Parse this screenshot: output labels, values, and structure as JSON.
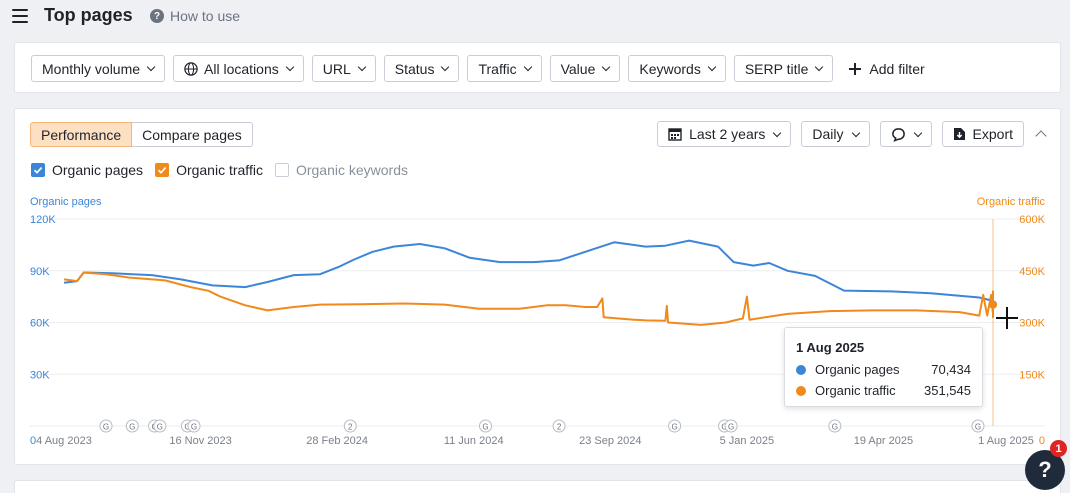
{
  "header": {
    "title": "Top pages",
    "how_to_use": "How to use"
  },
  "filters": {
    "items": [
      "Monthly volume",
      "All locations",
      "URL",
      "Status",
      "Traffic",
      "Value",
      "Keywords",
      "SERP title"
    ],
    "add_filter": "Add filter"
  },
  "chart_panel": {
    "tabs": [
      "Performance",
      "Compare pages"
    ],
    "active_tab": "Performance",
    "date_range": "Last 2 years",
    "granularity": "Daily",
    "export": "Export",
    "checks": [
      {
        "label": "Organic pages",
        "checked": true,
        "color": "#3b86d8"
      },
      {
        "label": "Organic traffic",
        "checked": true,
        "color": "#f08a1a"
      },
      {
        "label": "Organic keywords",
        "checked": false,
        "color": "#c9ced6"
      }
    ]
  },
  "tooltip": {
    "date": "1 Aug 2025",
    "rows": [
      {
        "label": "Organic pages",
        "value": "70,434",
        "color": "#3b86d8"
      },
      {
        "label": "Organic traffic",
        "value": "351,545",
        "color": "#f08a1a"
      }
    ]
  },
  "help_badge": "1",
  "chart_data": {
    "type": "line",
    "left_axis_title": "Organic pages",
    "right_axis_title": "Organic traffic",
    "left_ticks": [
      "0",
      "30K",
      "60K",
      "90K",
      "120K"
    ],
    "left_tick_values": [
      0,
      30000,
      60000,
      90000,
      120000
    ],
    "right_ticks": [
      "0",
      "150K",
      "300K",
      "450K",
      "600K"
    ],
    "right_tick_values": [
      0,
      150000,
      300000,
      450000,
      600000
    ],
    "ylim_left": [
      0,
      120000
    ],
    "ylim_right": [
      0,
      600000
    ],
    "x_labels": [
      "4 Aug 2023",
      "16 Nov 2023",
      "28 Feb 2024",
      "11 Jun 2024",
      "23 Sep 2024",
      "5 Jan 2025",
      "19 Apr 2025",
      "1 Aug 2025"
    ],
    "x_range": [
      "2023-08-04",
      "2025-08-01"
    ],
    "annotations": [
      {
        "date": "2023-09-05",
        "label": "G"
      },
      {
        "date": "2023-09-25",
        "label": "G"
      },
      {
        "date": "2023-10-12",
        "label": "G"
      },
      {
        "date": "2023-10-16",
        "label": "G"
      },
      {
        "date": "2023-11-06",
        "label": "G"
      },
      {
        "date": "2023-11-11",
        "label": "G"
      },
      {
        "date": "2024-03-09",
        "label": "2"
      },
      {
        "date": "2024-06-20",
        "label": "G"
      },
      {
        "date": "2024-08-15",
        "label": "2"
      },
      {
        "date": "2024-11-11",
        "label": "G"
      },
      {
        "date": "2024-12-19",
        "label": "G"
      },
      {
        "date": "2024-12-24",
        "label": "G"
      },
      {
        "date": "2025-03-13",
        "label": "G"
      },
      {
        "date": "2025-06-30",
        "label": "G"
      }
    ],
    "series": [
      {
        "name": "Organic pages",
        "axis": "left",
        "color": "#3b86d8",
        "points": [
          [
            "2023-08-04",
            83000
          ],
          [
            "2023-08-14",
            84000
          ],
          [
            "2023-08-19",
            89000
          ],
          [
            "2023-09-10",
            88500
          ],
          [
            "2023-10-10",
            87500
          ],
          [
            "2023-11-01",
            85000
          ],
          [
            "2023-11-25",
            81500
          ],
          [
            "2023-12-20",
            80500
          ],
          [
            "2024-01-06",
            83500
          ],
          [
            "2024-01-26",
            87500
          ],
          [
            "2024-02-15",
            88000
          ],
          [
            "2024-03-01",
            92500
          ],
          [
            "2024-03-12",
            96500
          ],
          [
            "2024-03-26",
            101000
          ],
          [
            "2024-04-11",
            104000
          ],
          [
            "2024-05-01",
            105500
          ],
          [
            "2024-05-20",
            103000
          ],
          [
            "2024-06-08",
            97500
          ],
          [
            "2024-07-01",
            95000
          ],
          [
            "2024-07-27",
            95000
          ],
          [
            "2024-08-15",
            96000
          ],
          [
            "2024-09-08",
            102000
          ],
          [
            "2024-09-26",
            106500
          ],
          [
            "2024-10-20",
            104000
          ],
          [
            "2024-11-04",
            104500
          ],
          [
            "2024-11-22",
            107500
          ],
          [
            "2024-12-14",
            104000
          ],
          [
            "2024-12-26",
            95000
          ],
          [
            "2025-01-10",
            93000
          ],
          [
            "2025-01-22",
            94500
          ],
          [
            "2025-02-05",
            90000
          ],
          [
            "2025-02-26",
            87000
          ],
          [
            "2025-03-20",
            78500
          ],
          [
            "2025-04-25",
            78000
          ],
          [
            "2025-05-25",
            77000
          ],
          [
            "2025-07-01",
            74500
          ],
          [
            "2025-07-25",
            72500
          ],
          [
            "2025-08-01",
            70434
          ]
        ]
      },
      {
        "name": "Organic traffic",
        "axis": "right",
        "color": "#f08a1a",
        "points": [
          [
            "2023-08-04",
            425000
          ],
          [
            "2023-08-14",
            420000
          ],
          [
            "2023-08-19",
            445000
          ],
          [
            "2023-09-05",
            440000
          ],
          [
            "2023-09-23",
            430000
          ],
          [
            "2023-10-20",
            422000
          ],
          [
            "2023-11-08",
            403000
          ],
          [
            "2023-11-22",
            392000
          ],
          [
            "2023-12-01",
            375000
          ],
          [
            "2023-12-20",
            350000
          ],
          [
            "2024-01-06",
            335000
          ],
          [
            "2024-01-26",
            345000
          ],
          [
            "2024-02-15",
            352000
          ],
          [
            "2024-03-16",
            353000
          ],
          [
            "2024-04-20",
            355000
          ],
          [
            "2024-05-20",
            352000
          ],
          [
            "2024-06-15",
            340000
          ],
          [
            "2024-07-16",
            340000
          ],
          [
            "2024-08-06",
            350000
          ],
          [
            "2024-08-20",
            350000
          ],
          [
            "2024-09-04",
            345000
          ],
          [
            "2024-09-13",
            345000
          ],
          [
            "2024-09-17",
            370000
          ],
          [
            "2024-09-18",
            315000
          ],
          [
            "2024-10-11",
            308000
          ],
          [
            "2024-10-20",
            306000
          ],
          [
            "2024-11-04",
            305000
          ],
          [
            "2024-11-05",
            348000
          ],
          [
            "2024-11-06",
            300000
          ],
          [
            "2024-12-01",
            293000
          ],
          [
            "2024-12-20",
            300000
          ],
          [
            "2025-01-02",
            312000
          ],
          [
            "2025-01-05",
            375000
          ],
          [
            "2025-01-07",
            308000
          ],
          [
            "2025-02-05",
            325000
          ],
          [
            "2025-03-09",
            333000
          ],
          [
            "2025-04-11",
            335000
          ],
          [
            "2025-05-14",
            335000
          ],
          [
            "2025-06-16",
            330000
          ],
          [
            "2025-07-01",
            320000
          ],
          [
            "2025-07-04",
            380000
          ],
          [
            "2025-07-07",
            320000
          ],
          [
            "2025-07-10",
            380000
          ],
          [
            "2025-07-13",
            325000
          ],
          [
            "2025-07-16",
            375000
          ],
          [
            "2025-07-20",
            315000
          ],
          [
            "2025-07-25",
            390000
          ],
          [
            "2025-08-01",
            351545
          ]
        ]
      }
    ]
  }
}
